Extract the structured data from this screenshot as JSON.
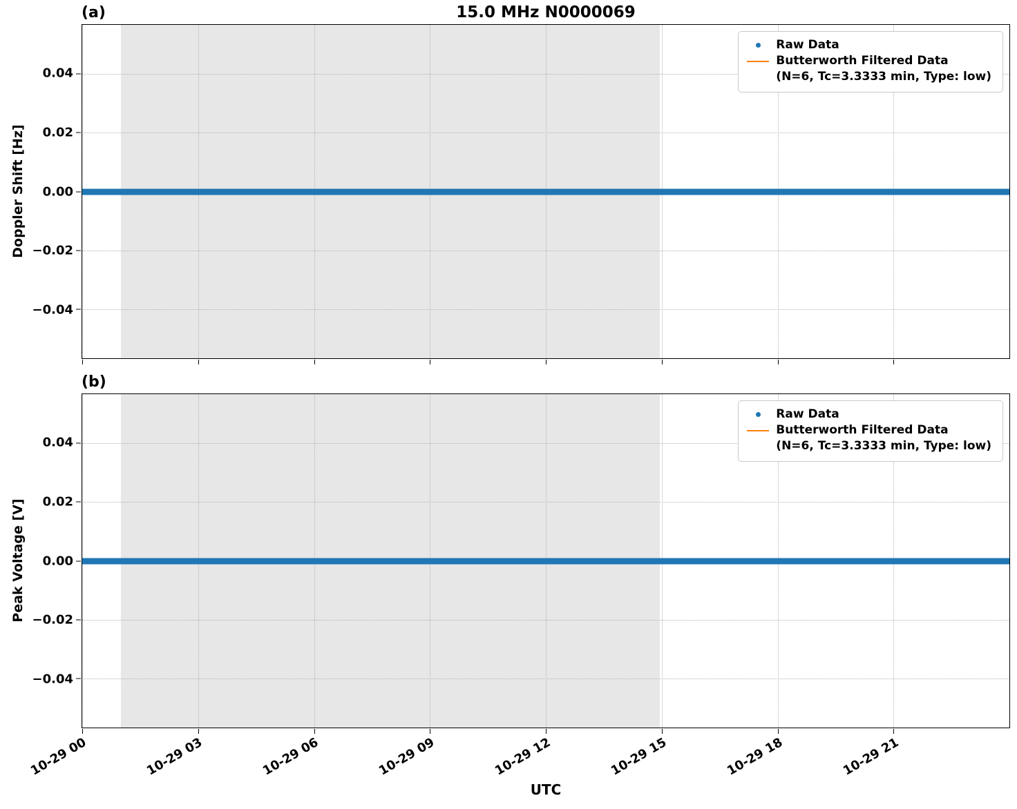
{
  "title": "15.0 MHz N0000069",
  "xlabel": "UTC",
  "panels": [
    {
      "tag": "(a)",
      "ylabel": "Doppler Shift [Hz]"
    },
    {
      "tag": "(b)",
      "ylabel": "Peak Voltage [V]"
    }
  ],
  "legend": {
    "raw_label": "Raw Data",
    "filtered_label": "Butterworth Filtered Data",
    "filtered_sublabel": "(N=6, Tc=3.3333 min, Type: low)",
    "raw_color": "#1f77b4",
    "filtered_color": "#ff7f0e"
  },
  "chart_data": [
    {
      "type": "line",
      "title": "15.0 MHz N0000069",
      "xlabel": "UTC",
      "ylabel": "Doppler Shift [Hz]",
      "x_tick_labels": [
        "10-29 00",
        "10-29 03",
        "10-29 06",
        "10-29 09",
        "10-29 12",
        "10-29 15",
        "10-29 18",
        "10-29 21"
      ],
      "x_tick_hours": [
        0,
        3,
        6,
        9,
        12,
        15,
        18,
        21
      ],
      "xlim_hours": [
        0,
        24
      ],
      "y_ticks": [
        0.04,
        0.02,
        0.0,
        -0.02,
        -0.04
      ],
      "ylim": [
        -0.0565,
        0.0565
      ],
      "grid": "dotted",
      "legend_position": "upper right",
      "shaded_region_hours": [
        1.0,
        14.95
      ],
      "shade_color": "#e7e7e7",
      "series": [
        {
          "name": "Raw Data",
          "color": "#1f77b4",
          "style": "scatter",
          "constant_value": 0.0
        },
        {
          "name": "Butterworth Filtered Data (N=6, Tc=3.3333 min, Type: low)",
          "color": "#ff7f0e",
          "style": "line",
          "constant_value": 0.0
        }
      ]
    },
    {
      "type": "line",
      "title": "",
      "xlabel": "UTC",
      "ylabel": "Peak Voltage [V]",
      "x_tick_labels": [
        "10-29 00",
        "10-29 03",
        "10-29 06",
        "10-29 09",
        "10-29 12",
        "10-29 15",
        "10-29 18",
        "10-29 21"
      ],
      "x_tick_hours": [
        0,
        3,
        6,
        9,
        12,
        15,
        18,
        21
      ],
      "xlim_hours": [
        0,
        24
      ],
      "y_ticks": [
        0.04,
        0.02,
        0.0,
        -0.02,
        -0.04
      ],
      "ylim": [
        -0.0565,
        0.0565
      ],
      "grid": "dotted",
      "legend_position": "upper right",
      "shaded_region_hours": [
        1.0,
        14.95
      ],
      "shade_color": "#e7e7e7",
      "series": [
        {
          "name": "Raw Data",
          "color": "#1f77b4",
          "style": "scatter",
          "constant_value": 0.0
        },
        {
          "name": "Butterworth Filtered Data (N=6, Tc=3.3333 min, Type: low)",
          "color": "#ff7f0e",
          "style": "line",
          "constant_value": 0.0
        }
      ]
    }
  ]
}
